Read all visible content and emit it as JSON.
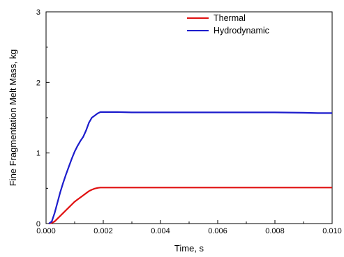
{
  "chart_data": {
    "type": "line",
    "xlabel": "Time, s",
    "ylabel": "Fine Fragmentation Melt Mass, kg",
    "xlim": [
      0,
      0.01
    ],
    "ylim": [
      0,
      3
    ],
    "x_ticks": [
      "0.000",
      "0.002",
      "0.004",
      "0.006",
      "0.008",
      "0.010"
    ],
    "y_ticks": [
      "0",
      "1",
      "2",
      "3"
    ],
    "grid": false,
    "legend_position": "top-right",
    "series": [
      {
        "name": "Thermal",
        "color": "#e01010",
        "x": [
          0.0001,
          0.0002,
          0.0003,
          0.0004,
          0.0005,
          0.0006,
          0.0007,
          0.0008,
          0.0009,
          0.001,
          0.0011,
          0.0012,
          0.0013,
          0.0014,
          0.0015,
          0.0016,
          0.0017,
          0.0018,
          0.0019,
          0.002,
          0.003,
          0.004,
          0.005,
          0.006,
          0.007,
          0.008,
          0.009,
          0.01
        ],
        "y": [
          0.0,
          0.01,
          0.03,
          0.07,
          0.11,
          0.15,
          0.19,
          0.23,
          0.27,
          0.31,
          0.34,
          0.37,
          0.4,
          0.43,
          0.46,
          0.48,
          0.495,
          0.505,
          0.51,
          0.51,
          0.51,
          0.51,
          0.51,
          0.51,
          0.51,
          0.51,
          0.51,
          0.51
        ]
      },
      {
        "name": "Hydrodynamic",
        "color": "#1c1ccc",
        "x": [
          0.0001,
          0.0002,
          0.0003,
          0.0004,
          0.0005,
          0.0006,
          0.0007,
          0.0008,
          0.0009,
          0.001,
          0.0011,
          0.0012,
          0.0013,
          0.0014,
          0.0015,
          0.0016,
          0.0017,
          0.0018,
          0.0019,
          0.002,
          0.0025,
          0.003,
          0.004,
          0.005,
          0.006,
          0.007,
          0.008,
          0.009,
          0.0095,
          0.01
        ],
        "y": [
          0.0,
          0.03,
          0.15,
          0.3,
          0.45,
          0.58,
          0.7,
          0.81,
          0.92,
          1.02,
          1.1,
          1.17,
          1.23,
          1.32,
          1.43,
          1.5,
          1.53,
          1.56,
          1.58,
          1.58,
          1.58,
          1.575,
          1.575,
          1.575,
          1.575,
          1.575,
          1.575,
          1.57,
          1.565,
          1.565
        ]
      }
    ]
  }
}
